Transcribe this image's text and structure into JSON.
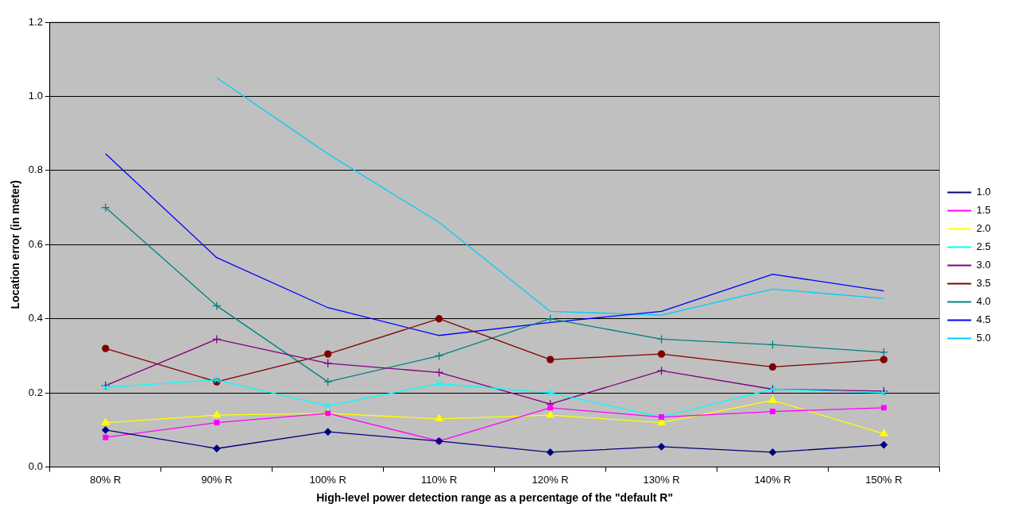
{
  "chart_data": {
    "type": "line",
    "xlabel": "High-level power detection range as a percentage of the \"default R\"",
    "ylabel": "Location error (in meter)",
    "categories": [
      "80% R",
      "90% R",
      "100% R",
      "110% R",
      "120% R",
      "130% R",
      "140% R",
      "150% R"
    ],
    "ylim": [
      0,
      1.2
    ],
    "yticks": [
      {
        "value": 0,
        "label": "0.0"
      },
      {
        "value": 0.2,
        "label": "0.2"
      },
      {
        "value": 0.4,
        "label": "0.4"
      },
      {
        "value": 0.6,
        "label": "0.6"
      },
      {
        "value": 0.8,
        "label": "0.8"
      },
      {
        "value": 1,
        "label": "1.0"
      },
      {
        "value": 1.2,
        "label": "1.2"
      }
    ],
    "grid": "y",
    "legend": "right",
    "line_style": "solid",
    "series": [
      {
        "name": "1.0",
        "color": "#000080",
        "marker": "diamond",
        "values": [
          0.1,
          0.05,
          0.095,
          0.07,
          0.04,
          0.055,
          0.04,
          0.06
        ]
      },
      {
        "name": "1.5",
        "color": "#ff00ff",
        "marker": "square",
        "values": [
          0.08,
          0.12,
          0.145,
          0.07,
          0.16,
          0.135,
          0.15,
          0.16
        ]
      },
      {
        "name": "2.0",
        "color": "#ffff00",
        "marker": "triangle",
        "values": [
          0.12,
          0.14,
          0.145,
          0.13,
          0.14,
          0.12,
          0.18,
          0.09
        ]
      },
      {
        "name": "2.5",
        "color": "#00ffff",
        "marker": "x",
        "values": [
          0.215,
          0.235,
          0.165,
          0.225,
          0.2,
          0.135,
          0.21,
          0.2
        ]
      },
      {
        "name": "3.0",
        "color": "#800080",
        "marker": "cross",
        "values": [
          0.22,
          0.345,
          0.28,
          0.255,
          0.17,
          0.26,
          0.21,
          0.205
        ]
      },
      {
        "name": "3.5",
        "color": "#800000",
        "marker": "circle",
        "values": [
          0.32,
          0.23,
          0.305,
          0.4,
          0.29,
          0.305,
          0.27,
          0.29
        ]
      },
      {
        "name": "4.0",
        "color": "#008080",
        "marker": "cross",
        "values": [
          0.7,
          0.435,
          0.23,
          0.3,
          0.4,
          0.345,
          0.33,
          0.31
        ]
      },
      {
        "name": "4.5",
        "color": "#0000ff",
        "marker": "none",
        "values": [
          0.845,
          0.565,
          0.43,
          0.355,
          0.39,
          0.42,
          0.52,
          0.475
        ]
      },
      {
        "name": "5.0",
        "color": "#00ccff",
        "marker": "none",
        "values": [
          null,
          1.05,
          0.845,
          0.66,
          0.42,
          0.41,
          0.48,
          0.455
        ]
      }
    ]
  }
}
